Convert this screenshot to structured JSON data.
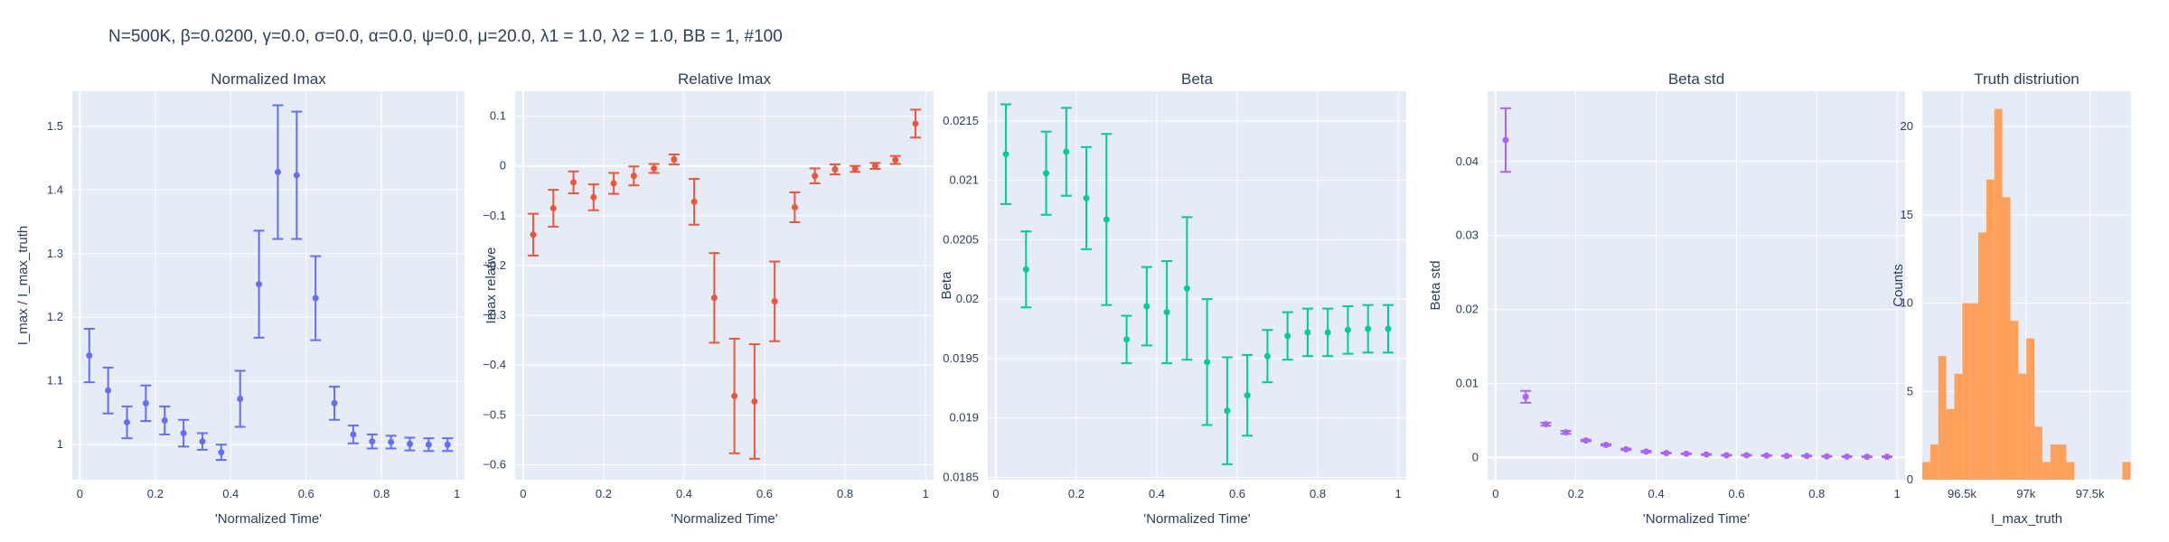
{
  "figure_title": "N=500K, β=0.0200, γ=0.0, σ=0.0,  α=0.0, ψ=0.0, μ=20.0, λ1 = 1.0, λ2 = 1.0, BB = 1, #100",
  "colors": {
    "panel_bg": "#E5ECF6",
    "grid": "#ffffff",
    "text": "#2a3f5f"
  },
  "chart_data": [
    {
      "type": "scatter",
      "title": "Normalized Imax",
      "xlabel": "'Normalized Time'",
      "ylabel": "I_max / I_max_truth",
      "color": "#636EFA",
      "xlim": [
        -0.02,
        1.02
      ],
      "ylim": [
        0.945,
        1.555
      ],
      "xticks": [
        0,
        0.2,
        0.4,
        0.6,
        0.8,
        1
      ],
      "xtick_labels": [
        "0",
        "0.2",
        "0.4",
        "0.6",
        "0.8",
        "1"
      ],
      "yticks": [
        1,
        1.1,
        1.2,
        1.3,
        1.4,
        1.5
      ],
      "ytick_labels": [
        "1",
        "1.1",
        "1.2",
        "1.3",
        "1.4",
        "1.5"
      ],
      "x": [
        0.025,
        0.075,
        0.125,
        0.175,
        0.225,
        0.275,
        0.325,
        0.375,
        0.425,
        0.475,
        0.525,
        0.575,
        0.625,
        0.675,
        0.725,
        0.775,
        0.825,
        0.875,
        0.925,
        0.975
      ],
      "y": [
        1.14,
        1.085,
        1.035,
        1.065,
        1.038,
        1.018,
        1.005,
        0.988,
        1.072,
        1.252,
        1.428,
        1.423,
        1.23,
        1.065,
        1.016,
        1.005,
        1.004,
        1.001,
        1.0,
        1.0
      ],
      "err": [
        0.042,
        0.036,
        0.025,
        0.028,
        0.022,
        0.021,
        0.013,
        0.012,
        0.044,
        0.084,
        0.105,
        0.1,
        0.066,
        0.026,
        0.014,
        0.011,
        0.01,
        0.01,
        0.01,
        0.01
      ]
    },
    {
      "type": "scatter",
      "title": "Relative Imax",
      "xlabel": "'Normalized Time'",
      "ylabel": "Imax relative",
      "color": "#EF553B",
      "zero_line": true,
      "xlim": [
        -0.02,
        1.02
      ],
      "ylim": [
        -0.63,
        0.15
      ],
      "xticks": [
        0,
        0.2,
        0.4,
        0.6,
        0.8,
        1
      ],
      "xtick_labels": [
        "0",
        "0.2",
        "0.4",
        "0.6",
        "0.8",
        "1"
      ],
      "yticks": [
        -0.6,
        -0.5,
        -0.4,
        -0.3,
        -0.2,
        -0.1,
        0,
        0.1
      ],
      "ytick_labels": [
        "−0.6",
        "−0.5",
        "−0.4",
        "−0.3",
        "−0.2",
        "−0.1",
        "0",
        "0.1"
      ],
      "x": [
        0.025,
        0.075,
        0.125,
        0.175,
        0.225,
        0.275,
        0.325,
        0.375,
        0.425,
        0.475,
        0.525,
        0.575,
        0.625,
        0.675,
        0.725,
        0.775,
        0.825,
        0.875,
        0.925,
        0.975
      ],
      "y": [
        -0.138,
        -0.085,
        -0.033,
        -0.063,
        -0.035,
        -0.02,
        -0.005,
        0.013,
        -0.072,
        -0.265,
        -0.462,
        -0.473,
        -0.272,
        -0.083,
        -0.02,
        -0.007,
        -0.006,
        0.0,
        0.012,
        0.085
      ],
      "err": [
        0.042,
        0.037,
        0.022,
        0.026,
        0.021,
        0.019,
        0.009,
        0.01,
        0.046,
        0.09,
        0.115,
        0.115,
        0.08,
        0.03,
        0.015,
        0.01,
        0.006,
        0.006,
        0.008,
        0.028
      ]
    },
    {
      "type": "scatter",
      "title": "Beta",
      "xlabel": "'Normalized Time'",
      "ylabel": "Beta",
      "color": "#00CC96",
      "xlim": [
        -0.02,
        1.02
      ],
      "ylim": [
        0.01848,
        0.02175
      ],
      "xticks": [
        0,
        0.2,
        0.4,
        0.6,
        0.8,
        1
      ],
      "xtick_labels": [
        "0",
        "0.2",
        "0.4",
        "0.6",
        "0.8",
        "1"
      ],
      "yticks": [
        0.0185,
        0.019,
        0.0195,
        0.02,
        0.0205,
        0.021,
        0.0215
      ],
      "ytick_labels": [
        "0.0185",
        "0.019",
        "0.0195",
        "0.02",
        "0.0205",
        "0.021",
        "0.0215"
      ],
      "x": [
        0.025,
        0.075,
        0.125,
        0.175,
        0.225,
        0.275,
        0.325,
        0.375,
        0.425,
        0.475,
        0.525,
        0.575,
        0.625,
        0.675,
        0.725,
        0.775,
        0.825,
        0.875,
        0.925,
        0.975
      ],
      "y": [
        0.02122,
        0.02025,
        0.02106,
        0.02124,
        0.02085,
        0.02067,
        0.01966,
        0.01994,
        0.01989,
        0.02009,
        0.01947,
        0.01906,
        0.01919,
        0.01952,
        0.01969,
        0.01972,
        0.01972,
        0.01974,
        0.01975,
        0.01975
      ],
      "err": [
        0.00042,
        0.00032,
        0.00035,
        0.00037,
        0.00043,
        0.00072,
        0.0002,
        0.00033,
        0.00043,
        0.0006,
        0.00053,
        0.00045,
        0.00034,
        0.00022,
        0.0002,
        0.0002,
        0.0002,
        0.0002,
        0.0002,
        0.0002
      ]
    },
    {
      "type": "scatter",
      "title": "Beta std",
      "xlabel": "'Normalized Time'",
      "ylabel": "Beta std",
      "color": "#AB63FA",
      "zero_line": true,
      "xlim": [
        -0.02,
        1.02
      ],
      "ylim": [
        -0.003,
        0.0495
      ],
      "xticks": [
        0,
        0.2,
        0.4,
        0.6,
        0.8,
        1
      ],
      "xtick_labels": [
        "0",
        "0.2",
        "0.4",
        "0.6",
        "0.8",
        "1"
      ],
      "yticks": [
        0,
        0.01,
        0.02,
        0.03,
        0.04
      ],
      "ytick_labels": [
        "0",
        "0.01",
        "0.02",
        "0.03",
        "0.04"
      ],
      "x": [
        0.025,
        0.075,
        0.125,
        0.175,
        0.225,
        0.275,
        0.325,
        0.375,
        0.425,
        0.475,
        0.525,
        0.575,
        0.625,
        0.675,
        0.725,
        0.775,
        0.825,
        0.875,
        0.925,
        0.975
      ],
      "y": [
        0.0429,
        0.0082,
        0.0045,
        0.0034,
        0.0023,
        0.0017,
        0.0011,
        0.0008,
        0.0006,
        0.0005,
        0.0004,
        0.0003,
        0.0003,
        0.00025,
        0.0002,
        0.0002,
        0.00015,
        0.00012,
        0.0001,
        0.0001
      ],
      "err": [
        0.0043,
        0.0008,
        0.0002,
        0.0002,
        0.0001,
        0.0001,
        0.0001,
        0.0001,
        5e-05,
        5e-05,
        5e-05,
        5e-05,
        5e-05,
        5e-05,
        5e-05,
        5e-05,
        5e-05,
        5e-05,
        5e-05,
        5e-05
      ]
    },
    {
      "type": "bar",
      "title": "Truth distriution",
      "xlabel": "I_max_truth",
      "ylabel": "Counts",
      "color": "#FFA15A",
      "xlim": [
        96190,
        97820
      ],
      "ylim": [
        0,
        22
      ],
      "xticks": [
        96500,
        97000,
        97500
      ],
      "xtick_labels": [
        "96.5k",
        "97k",
        "97.5k"
      ],
      "yticks": [
        0,
        5,
        10,
        15,
        20
      ],
      "ytick_labels": [
        "0",
        "5",
        "10",
        "15",
        "20"
      ],
      "bin_width": 62.5,
      "bin_starts": [
        96190,
        96252.5,
        96315,
        96377.5,
        96440,
        96502.5,
        96565,
        96627.5,
        96690,
        96752.5,
        96815,
        96877.5,
        96940,
        97002.5,
        97065,
        97127.5,
        97190,
        97252.5,
        97315,
        97377.5,
        97440,
        97502.5,
        97565,
        97627.5,
        97690,
        97752.5
      ],
      "counts": [
        1,
        2,
        7,
        4,
        6,
        10,
        10,
        14,
        17,
        21,
        16,
        9,
        6,
        8,
        3,
        1,
        2,
        2,
        1,
        0,
        0,
        0,
        0,
        0,
        0,
        1
      ]
    }
  ]
}
